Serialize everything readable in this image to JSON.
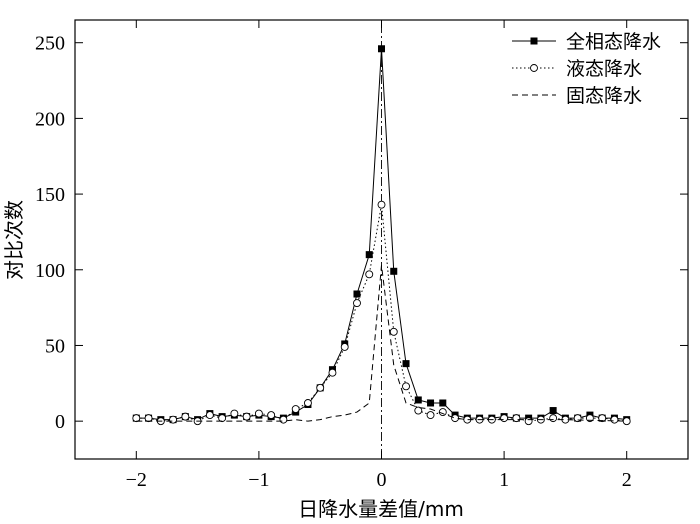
{
  "chart_data": {
    "type": "line",
    "xlabel": "日降水量差值/mm",
    "ylabel": "对比次数",
    "xlim": [
      -2.5,
      2.5
    ],
    "ylim": [
      -25,
      265
    ],
    "xticks": [
      -2,
      -1,
      0,
      1,
      2
    ],
    "xtick_labels": [
      "−2",
      "−1",
      "0",
      "1",
      "2"
    ],
    "yticks": [
      0,
      50,
      100,
      150,
      200,
      250
    ],
    "ytick_labels": [
      "0",
      "50",
      "100",
      "150",
      "200",
      "250"
    ],
    "grid": false,
    "legend_position": "top-right",
    "reference_line_x": 0,
    "series": [
      {
        "name": "全相态降水",
        "style": "solid",
        "marker": "square-filled",
        "color": "#000000",
        "x": [
          -2.0,
          -1.9,
          -1.8,
          -1.7,
          -1.6,
          -1.5,
          -1.4,
          -1.3,
          -1.2,
          -1.1,
          -1.0,
          -0.9,
          -0.8,
          -0.7,
          -0.6,
          -0.5,
          -0.4,
          -0.3,
          -0.2,
          -0.1,
          0.0,
          0.1,
          0.2,
          0.3,
          0.4,
          0.5,
          0.6,
          0.7,
          0.8,
          0.9,
          1.0,
          1.1,
          1.2,
          1.3,
          1.4,
          1.5,
          1.6,
          1.7,
          1.8,
          1.9,
          2.0
        ],
        "y": [
          2,
          2,
          1,
          1,
          3,
          1,
          5,
          3,
          4,
          3,
          4,
          3,
          2,
          6,
          11,
          22,
          34,
          51,
          84,
          110,
          246,
          99,
          38,
          14,
          12,
          12,
          4,
          2,
          2,
          2,
          3,
          2,
          2,
          2,
          7,
          2,
          2,
          4,
          2,
          2,
          1
        ]
      },
      {
        "name": "液态降水",
        "style": "dotted",
        "marker": "circle-open",
        "color": "#000000",
        "x": [
          -2.0,
          -1.9,
          -1.8,
          -1.7,
          -1.6,
          -1.5,
          -1.4,
          -1.3,
          -1.2,
          -1.1,
          -1.0,
          -0.9,
          -0.8,
          -0.7,
          -0.6,
          -0.5,
          -0.4,
          -0.3,
          -0.2,
          -0.1,
          0.0,
          0.1,
          0.2,
          0.3,
          0.4,
          0.5,
          0.6,
          0.7,
          0.8,
          0.9,
          1.0,
          1.1,
          1.2,
          1.3,
          1.4,
          1.5,
          1.6,
          1.7,
          1.8,
          1.9,
          2.0
        ],
        "y": [
          2,
          2,
          0,
          1,
          3,
          0,
          4,
          2,
          5,
          3,
          5,
          4,
          1,
          8,
          12,
          22,
          32,
          49,
          78,
          97,
          143,
          59,
          23,
          7,
          4,
          6,
          2,
          1,
          1,
          1,
          2,
          2,
          0,
          1,
          2,
          1,
          2,
          2,
          2,
          1,
          0
        ]
      },
      {
        "name": "固态降水",
        "style": "dashed",
        "marker": "none",
        "color": "#000000",
        "x": [
          -2.0,
          -1.5,
          -1.0,
          -0.8,
          -0.7,
          -0.6,
          -0.5,
          -0.4,
          -0.3,
          -0.2,
          -0.1,
          0.0,
          0.1,
          0.2,
          0.3,
          0.4,
          0.5,
          0.6,
          0.7,
          1.0,
          1.5,
          2.0
        ],
        "y": [
          0,
          0,
          0,
          0,
          1,
          0,
          1,
          3,
          4,
          6,
          12,
          103,
          37,
          12,
          9,
          8,
          5,
          2,
          1,
          1,
          1,
          0
        ]
      }
    ]
  }
}
